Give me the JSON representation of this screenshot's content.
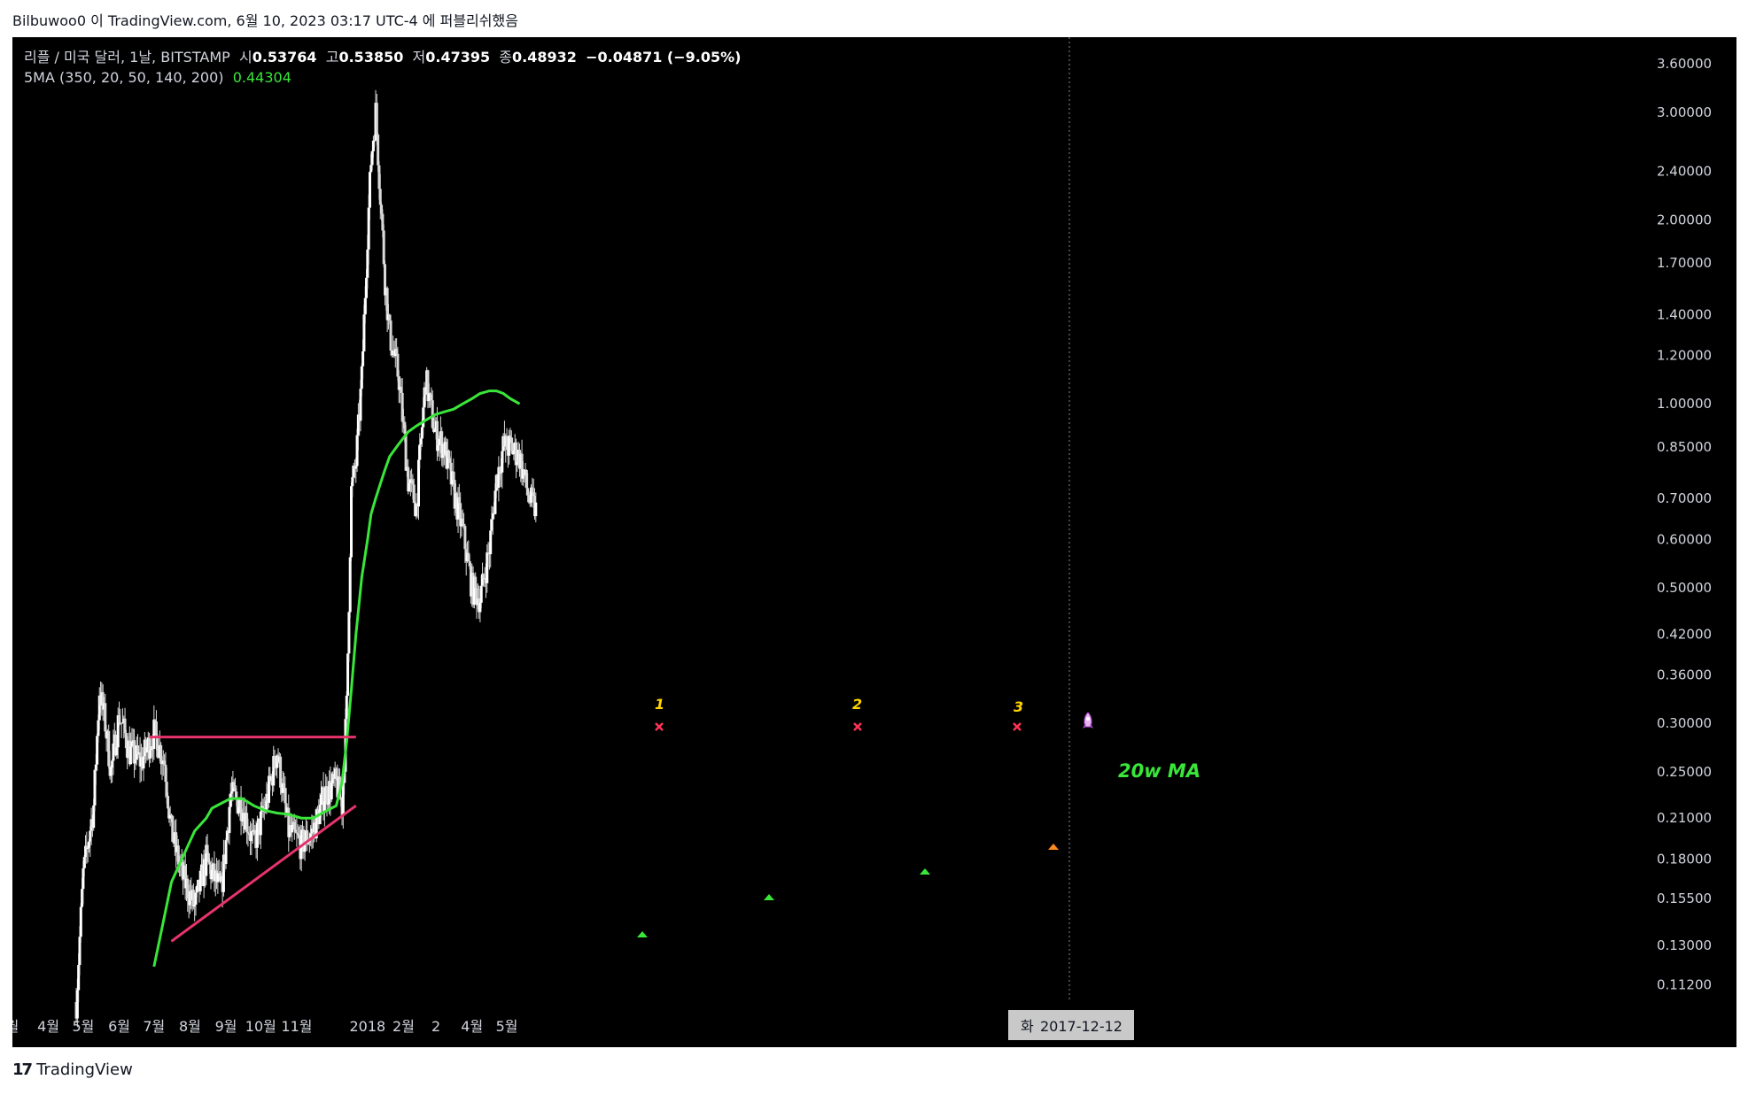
{
  "header": {
    "title": "Bilbuwoo0 이 TradingView.com, 6월 10, 2023 03:17 UTC-4 에 퍼블리쉬했음"
  },
  "legend": {
    "symbol": "리플 / 미국 달러, 1날, BITSTAMP",
    "open_label": "시",
    "open": "0.53764",
    "high_label": "고",
    "high": "0.53850",
    "low_label": "저",
    "low": "0.47395",
    "close_label": "종",
    "close": "0.48932",
    "change": "−0.04871 (−9.05%)",
    "ma_label": "5MA (350, 20, 50, 140, 200)",
    "ma_value": "0.44304"
  },
  "footer": {
    "brand": "TradingView"
  },
  "annotations": {
    "label1": "1",
    "label2": "2",
    "label3": "3",
    "ma_text": "20w MA",
    "crosshair_date": "2017-12-12",
    "crosshair_prefix": "화"
  },
  "colors": {
    "background": "#000000",
    "candle": "#d9d9d9",
    "ma": "#39e639",
    "trendline": "#e6336b",
    "marker_x": "#ff3355",
    "marker_up": "#39e639",
    "marker_up_orange": "#ff8a1f",
    "annotation_number": "#ffd400"
  },
  "chart_data": {
    "type": "line",
    "symbol": "XRP/USD",
    "scale": "log",
    "grid": false,
    "ylim": [
      0.105,
      3.85
    ],
    "y_ticks": [
      "3.60000",
      "3.00000",
      "2.40000",
      "2.00000",
      "1.70000",
      "1.40000",
      "1.20000",
      "1.00000",
      "0.85000",
      "0.70000",
      "0.60000",
      "0.50000",
      "0.42000",
      "0.36000",
      "0.30000",
      "0.25000",
      "0.21000",
      "0.18000",
      "0.15500",
      "0.13000",
      "0.11200"
    ],
    "x_ticks": [
      "월",
      "4월",
      "5월",
      "6월",
      "7월",
      "8월",
      "9월",
      "10월",
      "11월",
      "2018",
      "2월",
      "2",
      "4월",
      "5월"
    ],
    "x": [
      "2017-04-25",
      "2017-05-01",
      "2017-05-10",
      "2017-05-15",
      "2017-05-20",
      "2017-05-25",
      "2017-06-01",
      "2017-06-10",
      "2017-06-20",
      "2017-07-01",
      "2017-07-10",
      "2017-07-16",
      "2017-07-25",
      "2017-08-05",
      "2017-08-15",
      "2017-08-20",
      "2017-08-28",
      "2017-09-05",
      "2017-09-15",
      "2017-09-25",
      "2017-10-05",
      "2017-10-15",
      "2017-10-25",
      "2017-11-05",
      "2017-11-15",
      "2017-11-25",
      "2017-12-05",
      "2017-12-10",
      "2017-12-14",
      "2017-12-18",
      "2017-12-22",
      "2017-12-27",
      "2018-01-01",
      "2018-01-04",
      "2018-01-08",
      "2018-01-12",
      "2018-01-16",
      "2018-01-20",
      "2018-01-28",
      "2018-02-05",
      "2018-02-12",
      "2018-02-20",
      "2018-02-28",
      "2018-03-08",
      "2018-03-16",
      "2018-03-24",
      "2018-04-01",
      "2018-04-08",
      "2018-04-16",
      "2018-04-22",
      "2018-04-28",
      "2018-05-04",
      "2018-05-12",
      "2018-05-20",
      "2018-05-26"
    ],
    "series": [
      {
        "values": [
          0.105,
          0.17,
          0.22,
          0.34,
          0.3,
          0.25,
          0.31,
          0.27,
          0.26,
          0.29,
          0.26,
          0.2,
          0.17,
          0.15,
          0.18,
          0.17,
          0.16,
          0.23,
          0.22,
          0.19,
          0.22,
          0.27,
          0.2,
          0.19,
          0.2,
          0.23,
          0.24,
          0.22,
          0.32,
          0.72,
          0.8,
          1.1,
          1.9,
          2.5,
          3.0,
          2.2,
          1.6,
          1.3,
          1.1,
          0.75,
          0.68,
          1.1,
          0.9,
          0.85,
          0.72,
          0.62,
          0.5,
          0.48,
          0.58,
          0.75,
          0.85,
          0.85,
          0.82,
          0.7,
          0.67
        ]
      },
      {
        "values": [
          null,
          null,
          null,
          null,
          null,
          null,
          null,
          null,
          null,
          0.12,
          0.145,
          0.165,
          0.18,
          0.2,
          0.21,
          0.218,
          0.222,
          0.226,
          0.226,
          0.22,
          0.216,
          0.214,
          0.213,
          0.21,
          0.21,
          0.215,
          0.22,
          0.24,
          0.28,
          0.34,
          0.42,
          0.52,
          0.6,
          0.66,
          0.7,
          0.74,
          0.78,
          0.82,
          0.86,
          0.9,
          0.92,
          0.94,
          0.96,
          0.97,
          0.98,
          1.0,
          1.02,
          1.04,
          1.05,
          1.05,
          1.04,
          1.02,
          1.0,
          null,
          null
        ]
      }
    ],
    "trendlines": [
      {
        "x": [
          "2017-06-27",
          "2017-12-22"
        ],
        "y": [
          0.285,
          0.285
        ]
      },
      {
        "x": [
          "2017-07-16",
          "2017-12-22"
        ],
        "y": [
          0.132,
          0.22
        ]
      }
    ]
  }
}
